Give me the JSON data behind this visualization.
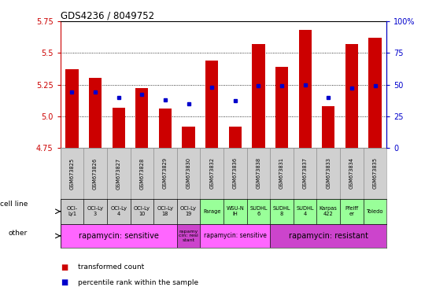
{
  "title": "GDS4236 / 8049752",
  "gsm_ids": [
    "GSM673825",
    "GSM673826",
    "GSM673827",
    "GSM673828",
    "GSM673829",
    "GSM673830",
    "GSM673832",
    "GSM673836",
    "GSM673838",
    "GSM673831",
    "GSM673837",
    "GSM673833",
    "GSM673834",
    "GSM673835"
  ],
  "transformed_counts": [
    5.37,
    5.3,
    5.07,
    5.22,
    5.06,
    4.92,
    5.44,
    4.92,
    5.57,
    5.39,
    5.68,
    5.08,
    5.57,
    5.62
  ],
  "percentile_ranks": [
    44,
    44,
    40,
    42,
    38,
    35,
    48,
    37,
    49,
    49,
    50,
    40,
    47,
    49
  ],
  "ylim_left": [
    4.75,
    5.75
  ],
  "ylim_right": [
    0,
    100
  ],
  "yticks_left": [
    4.75,
    5.0,
    5.25,
    5.5,
    5.75
  ],
  "yticks_right": [
    0,
    25,
    50,
    75,
    100
  ],
  "ytick_labels_right": [
    "0",
    "25",
    "50",
    "75",
    "100%"
  ],
  "bar_color": "#cc0000",
  "dot_color": "#0000cc",
  "bar_bottom": 4.75,
  "cell_lines": [
    "OCI-\nLy1",
    "OCI-Ly\n3",
    "OCI-Ly\n4",
    "OCI-Ly\n10",
    "OCI-Ly\n18",
    "OCI-Ly\n19",
    "Farage",
    "WSU-N\nIH",
    "SUDHL\n6",
    "SUDHL\n8",
    "SUDHL\n4",
    "Karpas\n422",
    "Pfeiff\ner",
    "Toledo"
  ],
  "cell_line_bg": [
    "#cccccc",
    "#cccccc",
    "#cccccc",
    "#cccccc",
    "#cccccc",
    "#cccccc",
    "#99ff99",
    "#99ff99",
    "#99ff99",
    "#99ff99",
    "#99ff99",
    "#99ff99",
    "#99ff99",
    "#99ff99"
  ],
  "other_spans": [
    {
      "start": 0,
      "end": 5,
      "color": "#ff66ff",
      "label": "rapamycin: sensitive",
      "fontsize": 7
    },
    {
      "start": 5,
      "end": 6,
      "color": "#cc44cc",
      "label": "rapamy\ncin: resi\nstant",
      "fontsize": 4.5
    },
    {
      "start": 6,
      "end": 9,
      "color": "#ff66ff",
      "label": "rapamycin: sensitive",
      "fontsize": 5.5
    },
    {
      "start": 9,
      "end": 14,
      "color": "#cc44cc",
      "label": "rapamycin: resistant",
      "fontsize": 7
    }
  ],
  "gsm_row_bg": "#d0d0d0",
  "legend_items": [
    {
      "label": "transformed count",
      "color": "#cc0000"
    },
    {
      "label": "percentile rank within the sample",
      "color": "#0000cc"
    }
  ]
}
